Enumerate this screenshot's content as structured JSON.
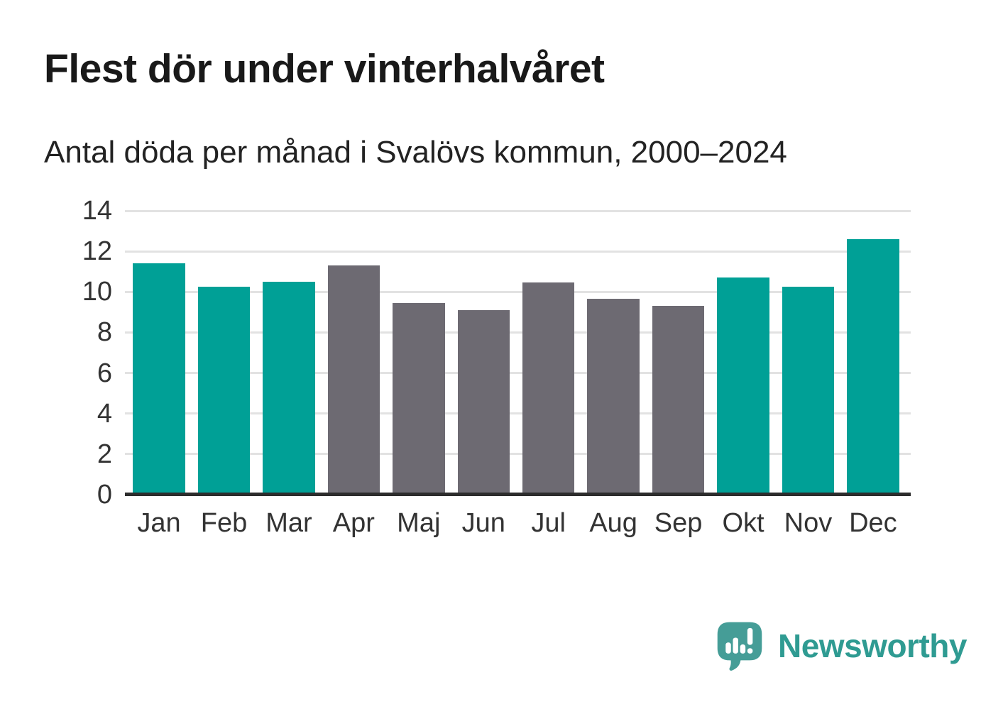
{
  "header": {
    "title": "Flest dör under vinterhalvåret",
    "subtitle": "Antal döda per månad i Svalövs kommun, 2000–2024"
  },
  "chart_data": {
    "type": "bar",
    "title": "Flest dör under vinterhalvåret",
    "subtitle": "Antal döda per månad i Svalövs kommun, 2000–2024",
    "categories": [
      "Jan",
      "Feb",
      "Mar",
      "Apr",
      "Maj",
      "Jun",
      "Jul",
      "Aug",
      "Sep",
      "Okt",
      "Nov",
      "Dec"
    ],
    "values": [
      11.4,
      10.25,
      10.5,
      11.3,
      9.45,
      9.1,
      10.45,
      9.65,
      9.3,
      10.7,
      10.25,
      12.6
    ],
    "bar_color_keys": [
      "teal",
      "teal",
      "teal",
      "gray",
      "gray",
      "gray",
      "gray",
      "gray",
      "gray",
      "teal",
      "teal",
      "teal"
    ],
    "colors": {
      "teal": "#00a096",
      "gray": "#6d6a72",
      "axis_line": "#2d2d2d",
      "gridline": "#e2e2e2",
      "tick_text": "#333333"
    },
    "ylim": [
      0,
      14
    ],
    "yticks": [
      0,
      2,
      4,
      6,
      8,
      10,
      12,
      14
    ],
    "grid": "horizontal",
    "legend": "none",
    "xlabel": "",
    "ylabel": ""
  },
  "branding": {
    "logo_text": "Newsworthy",
    "logo_icon": "newsworthy-speech-bubble-barchart-icon",
    "logo_color": "#2f9b92",
    "logo_icon_color": "#459d97"
  }
}
